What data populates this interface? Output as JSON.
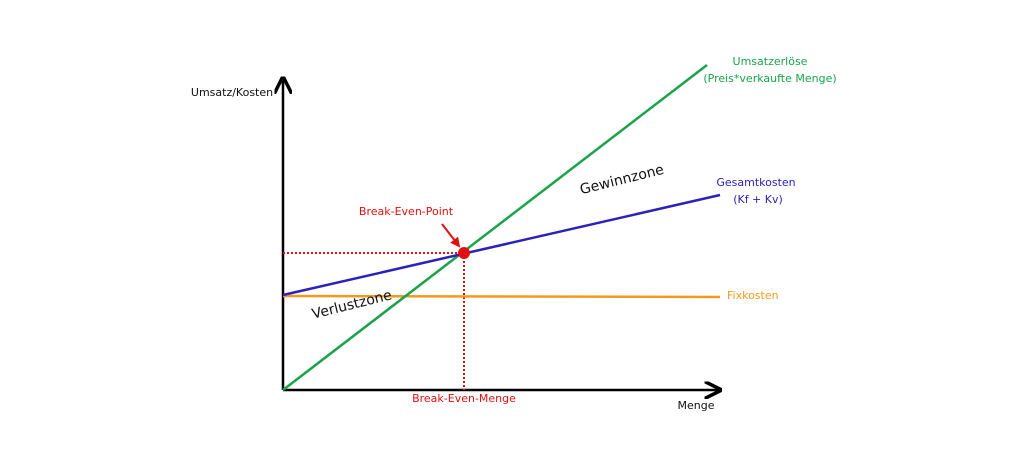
{
  "axes": {
    "y_label": "Umsatz/Kosten",
    "x_label": "Menge"
  },
  "lines": {
    "revenue": {
      "label": "Umsatzerlöse",
      "sublabel": "(Preis*verkaufte Menge)"
    },
    "total_cost": {
      "label": "Gesamtkosten",
      "sublabel": "(Kf + Kv)"
    },
    "fixed_cost": {
      "label": "Fixkosten"
    }
  },
  "break_even": {
    "point_label": "Break-Even-Point",
    "quantity_label": "Break-Even-Menge"
  },
  "zones": {
    "profit": "Gewinnzone",
    "loss": "Verlustzone"
  }
}
